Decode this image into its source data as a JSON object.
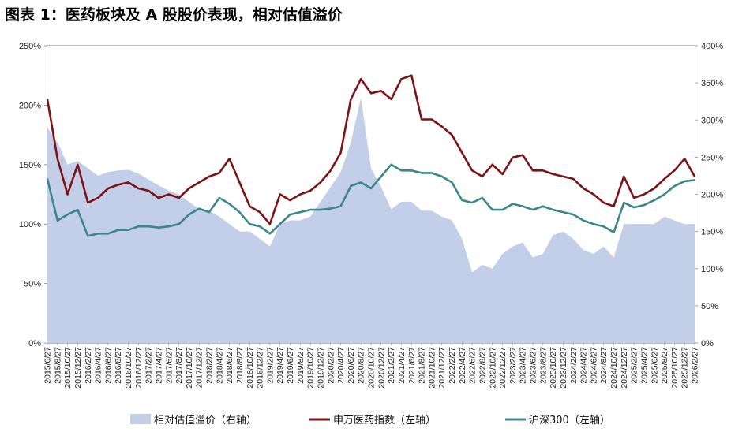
{
  "title": "图表 1：医药板块及 A 股股价表现，相对估值溢价",
  "chart_data": {
    "type": "line",
    "x_axis_type": "date",
    "x": [
      "2015/6/27",
      "2015/8/27",
      "2015/10/27",
      "2015/12/27",
      "2016/2/27",
      "2016/4/27",
      "2016/6/27",
      "2016/8/27",
      "2016/10/27",
      "2016/12/27",
      "2017/2/27",
      "2017/4/27",
      "2017/6/27",
      "2017/8/27",
      "2017/10/27",
      "2017/12/27",
      "2018/2/27",
      "2018/4/27",
      "2018/6/27",
      "2018/8/27",
      "2018/10/27",
      "2018/12/27",
      "2019/2/27",
      "2019/4/27",
      "2019/6/27",
      "2019/8/27",
      "2019/10/27",
      "2019/12/27",
      "2020/2/27",
      "2020/4/27",
      "2020/6/27",
      "2020/8/27",
      "2020/10/27",
      "2020/12/27",
      "2021/2/27",
      "2021/4/27",
      "2021/6/27",
      "2021/8/27",
      "2021/10/27",
      "2021/12/27",
      "2022/2/27",
      "2022/4/27",
      "2022/6/27",
      "2022/8/27",
      "2022/10/27",
      "2022/12/27",
      "2023/2/27",
      "2023/4/27",
      "2023/6/27",
      "2023/8/27",
      "2023/10/27",
      "2023/12/27",
      "2024/2/27",
      "2024/4/27",
      "2024/6/27",
      "2024/8/27",
      "2024/10/27",
      "2024/12/27",
      "2025/2/27",
      "2025/4/27",
      "2025/6/27",
      "2025/8/27",
      "2025/10/27",
      "2025/12/27",
      "2026/2/27"
    ],
    "x_tick_labels": [
      "2015/6/27",
      "2015/8/27",
      "2015/10/27",
      "2015/12/27",
      "2016/2/27",
      "2016/4/27",
      "2016/6/27",
      "2016/8/27",
      "2016/10/27",
      "2016/12/27",
      "2017/2/27",
      "2017/4/27",
      "2017/6/27",
      "2017/8/27",
      "2017/10/27",
      "2017/12/27",
      "2018/2/27",
      "2018/4/27",
      "2018/6/27",
      "2018/8/27",
      "2018/10/27",
      "2018/12/27",
      "2019/2/27",
      "2019/4/27",
      "2019/6/27",
      "2019/8/27",
      "2019/10/27",
      "2019/12/27",
      "2020/2/27",
      "2020/4/27",
      "2020/6/27",
      "2020/8/27",
      "2020/10/27",
      "2020/12/27",
      "2021/2/27",
      "2021/4/27",
      "2021/6/27",
      "2021/8/27",
      "2021/10/27",
      "2021/12/27",
      "2022/2/27",
      "2022/4/27",
      "2022/6/27",
      "2022/8/27",
      "2022/10/27",
      "2022/12/27",
      "2023/2/27",
      "2023/4/27",
      "2023/6/27",
      "2023/8/27",
      "2023/10/27",
      "2023/12/27",
      "2024/2/27",
      "2024/4/27",
      "2024/6/27",
      "2024/8/27",
      "2024/10/27",
      "2024/12/27",
      "2025/2/27",
      "2025/4/27",
      "2025/6/27",
      "2025/8/27",
      "2025/10/27",
      "2025/12/27",
      "2026/2/27"
    ],
    "y_left": {
      "ticks": [
        "0%",
        "50%",
        "100%",
        "150%",
        "200%",
        "250%"
      ],
      "ylim": [
        0,
        250
      ]
    },
    "y_right": {
      "ticks": [
        "0%",
        "50%",
        "100%",
        "150%",
        "200%",
        "250%",
        "300%",
        "350%",
        "400%"
      ],
      "ylim": [
        0,
        400
      ]
    },
    "series": [
      {
        "name": "相对估值溢价（右轴）",
        "type": "area",
        "axis": "right",
        "color": "#c3cfe8",
        "values": [
          290,
          270,
          240,
          245,
          235,
          225,
          230,
          232,
          233,
          228,
          220,
          212,
          205,
          200,
          190,
          180,
          178,
          170,
          160,
          150,
          150,
          140,
          130,
          160,
          165,
          165,
          170,
          190,
          210,
          230,
          270,
          330,
          235,
          210,
          180,
          190,
          190,
          178,
          178,
          170,
          165,
          140,
          95,
          105,
          100,
          120,
          130,
          135,
          115,
          120,
          145,
          150,
          140,
          125,
          120,
          130,
          115,
          160,
          160,
          160,
          160,
          170,
          165,
          160,
          160
        ]
      },
      {
        "name": "申万医药指数（左轴）",
        "type": "line",
        "axis": "left",
        "color": "#7b1416",
        "values": [
          205,
          155,
          125,
          150,
          118,
          122,
          130,
          133,
          135,
          130,
          128,
          122,
          125,
          122,
          130,
          135,
          140,
          143,
          155,
          135,
          115,
          110,
          100,
          125,
          120,
          125,
          128,
          135,
          145,
          160,
          205,
          222,
          210,
          212,
          205,
          222,
          225,
          188,
          188,
          182,
          175,
          160,
          145,
          140,
          150,
          142,
          156,
          158,
          145,
          145,
          142,
          140,
          138,
          130,
          125,
          118,
          115,
          140,
          122,
          125,
          130,
          138,
          145,
          155,
          140
        ]
      },
      {
        "name": "沪深300（左轴）",
        "type": "line",
        "axis": "left",
        "color": "#3b878f",
        "values": [
          138,
          103,
          108,
          112,
          90,
          92,
          92,
          95,
          95,
          98,
          98,
          97,
          98,
          100,
          108,
          113,
          110,
          122,
          117,
          110,
          100,
          98,
          92,
          100,
          108,
          110,
          112,
          112,
          113,
          115,
          132,
          135,
          130,
          140,
          150,
          145,
          145,
          143,
          143,
          140,
          135,
          120,
          118,
          122,
          112,
          112,
          117,
          115,
          112,
          115,
          112,
          110,
          108,
          103,
          100,
          98,
          93,
          118,
          114,
          116,
          120,
          125,
          132,
          136,
          137
        ]
      }
    ],
    "legend_position": "bottom",
    "grid": false
  }
}
